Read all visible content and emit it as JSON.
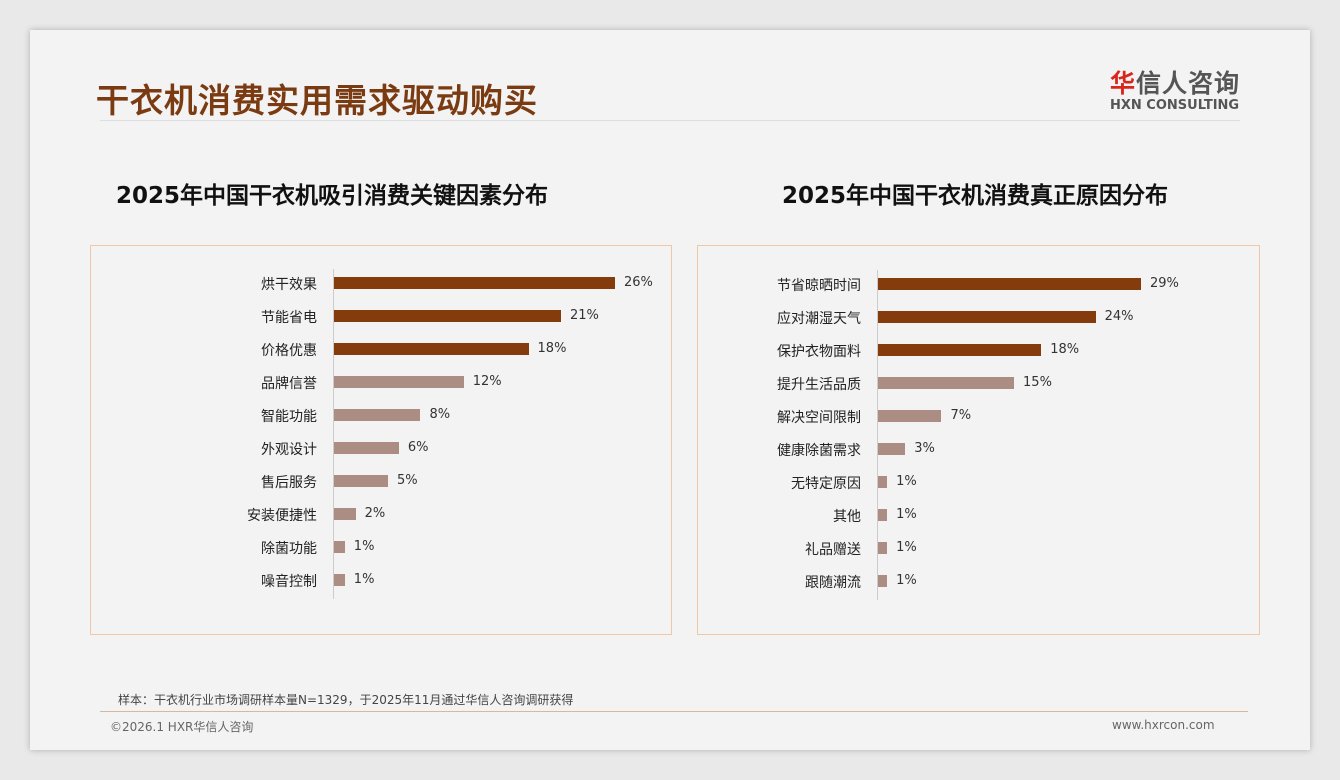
{
  "header": {
    "title": "干衣机消费实用需求驱动购买",
    "logo_cn_first": "华",
    "logo_cn_rest": "信人咨询",
    "logo_en": "HXN CONSULTING"
  },
  "chart_data": [
    {
      "type": "bar",
      "orientation": "horizontal",
      "title": "2025年中国干衣机吸引消费关键因素分布",
      "categories": [
        "烘干效果",
        "节能省电",
        "价格优惠",
        "品牌信誉",
        "智能功能",
        "外观设计",
        "售后服务",
        "安装便捷性",
        "除菌功能",
        "噪音控制"
      ],
      "values": [
        26,
        21,
        18,
        12,
        8,
        6,
        5,
        2,
        1,
        1
      ],
      "unit": "%",
      "highlight_top": 3,
      "colors": {
        "highlight": "#843c0c",
        "normal": "#ab8d84"
      }
    },
    {
      "type": "bar",
      "orientation": "horizontal",
      "title": "2025年中国干衣机消费真正原因分布",
      "categories": [
        "节省晾晒时间",
        "应对潮湿天气",
        "保护衣物面料",
        "提升生活品质",
        "解决空间限制",
        "健康除菌需求",
        "无特定原因",
        "其他",
        "礼品赠送",
        "跟随潮流"
      ],
      "values": [
        29,
        24,
        18,
        15,
        7,
        3,
        1,
        1,
        1,
        1
      ],
      "unit": "%",
      "highlight_top": 3,
      "colors": {
        "highlight": "#843c0c",
        "normal": "#ab8d84"
      }
    }
  ],
  "footer": {
    "note": "样本：干衣机行业市场调研样本量N=1329，于2025年11月通过华信人咨询调研获得",
    "copyright": "©2026.1 HXR华信人咨询",
    "website": "www.hxrcon.com"
  }
}
